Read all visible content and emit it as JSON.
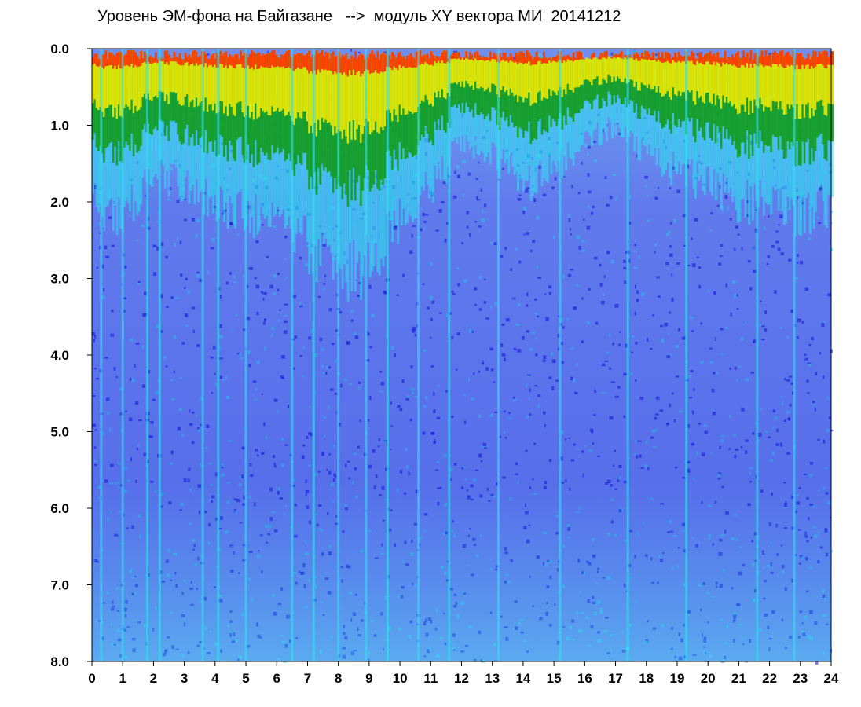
{
  "chart_data": {
    "type": "heatmap",
    "title": "Уровень ЭМ-фона на Байгазане   -->  модуль XY вектора МИ  20141212",
    "xlabel": "",
    "ylabel": "",
    "xlim": [
      0,
      24
    ],
    "ylim": [
      8.0,
      0.0
    ],
    "y_axis_inverted": true,
    "x_ticks": [
      "0",
      "1",
      "2",
      "3",
      "4",
      "5",
      "6",
      "7",
      "8",
      "9",
      "10",
      "11",
      "12",
      "13",
      "14",
      "15",
      "16",
      "17",
      "18",
      "19",
      "20",
      "21",
      "22",
      "23",
      "24"
    ],
    "y_ticks": [
      "0.0",
      "1.0",
      "2.0",
      "3.0",
      "4.0",
      "5.0",
      "6.0",
      "7.0",
      "8.0"
    ],
    "colorscale": [
      "#1010d8",
      "#6f8ef0",
      "#33dff0",
      "#119911",
      "#ffee00",
      "#ff2200"
    ],
    "background_color": "#6f8ef0",
    "grid": false,
    "legend": "none",
    "surface_band_depth": [
      {
        "hour": 0,
        "depth": 1.0
      },
      {
        "hour": 1,
        "depth": 1.1
      },
      {
        "hour": 2,
        "depth": 0.8
      },
      {
        "hour": 3,
        "depth": 0.9
      },
      {
        "hour": 4,
        "depth": 1.0
      },
      {
        "hour": 5,
        "depth": 1.1
      },
      {
        "hour": 6,
        "depth": 1.0
      },
      {
        "hour": 7,
        "depth": 1.3
      },
      {
        "hour": 8,
        "depth": 1.5
      },
      {
        "hour": 9,
        "depth": 1.4
      },
      {
        "hour": 10,
        "depth": 1.1
      },
      {
        "hour": 11,
        "depth": 0.9
      },
      {
        "hour": 12,
        "depth": 0.6
      },
      {
        "hour": 13,
        "depth": 0.7
      },
      {
        "hour": 14,
        "depth": 0.9
      },
      {
        "hour": 15,
        "depth": 0.8
      },
      {
        "hour": 16,
        "depth": 0.6
      },
      {
        "hour": 17,
        "depth": 0.5
      },
      {
        "hour": 18,
        "depth": 0.7
      },
      {
        "hour": 19,
        "depth": 0.8
      },
      {
        "hour": 20,
        "depth": 0.9
      },
      {
        "hour": 21,
        "depth": 1.0
      },
      {
        "hour": 22,
        "depth": 1.0
      },
      {
        "hour": 23,
        "depth": 1.1
      },
      {
        "hour": 24,
        "depth": 1.0
      }
    ],
    "vertical_streak_hours": [
      0.3,
      1.0,
      1.8,
      2.2,
      3.6,
      4.1,
      5.0,
      6.5,
      7.2,
      8.0,
      8.9,
      9.6,
      10.6,
      11.6,
      13.2,
      15.2,
      17.4,
      19.3,
      21.6,
      22.8
    ]
  }
}
